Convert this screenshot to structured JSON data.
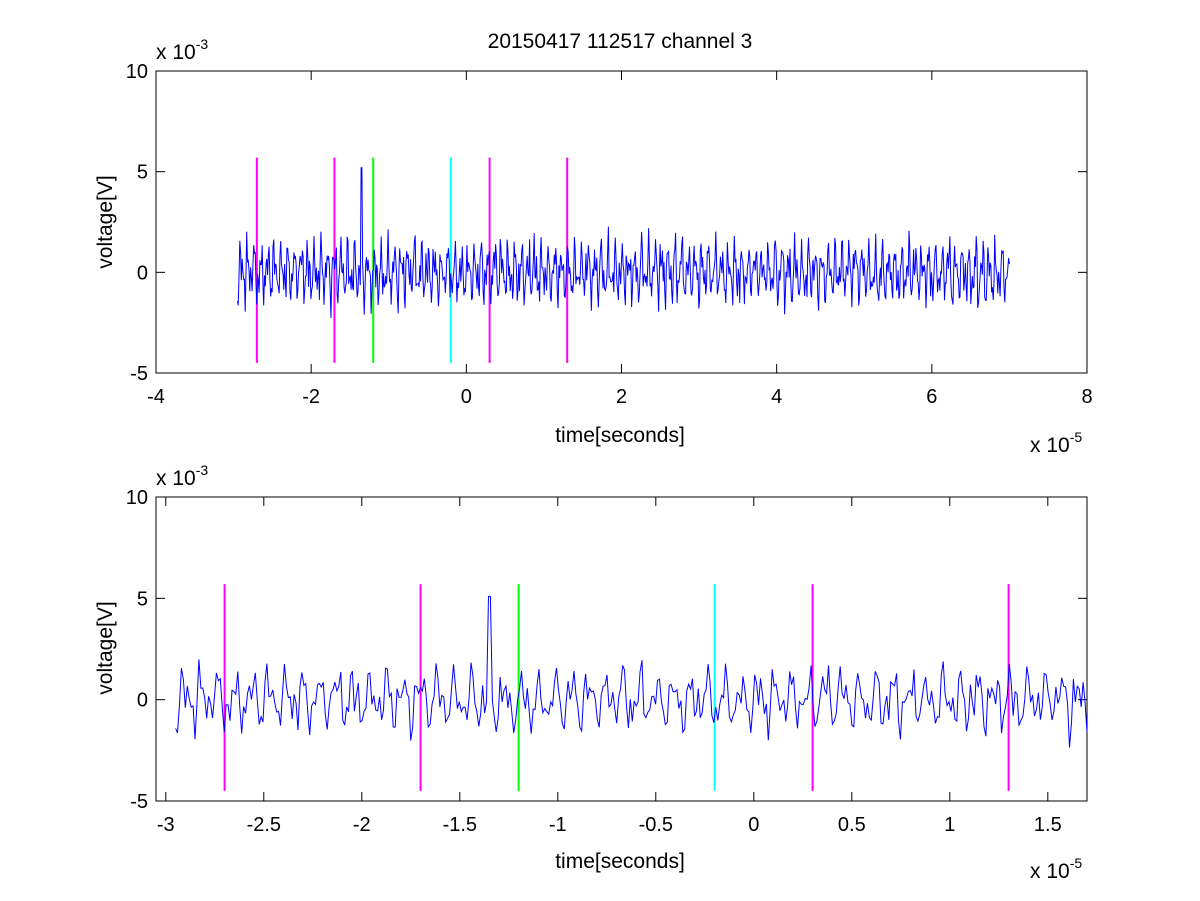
{
  "chart_data": [
    {
      "type": "line",
      "title": "20150417 112517 channel 3",
      "xlabel": "time[seconds]",
      "ylabel": "voltage[V]",
      "x_tick_labels": [
        "-4",
        "-2",
        "0",
        "2",
        "4",
        "6",
        "8"
      ],
      "x_ticks": [
        -4,
        -2,
        0,
        2,
        4,
        6,
        8
      ],
      "y_tick_labels": [
        "-5",
        "0",
        "5",
        "10"
      ],
      "y_ticks": [
        -5,
        0,
        5,
        10
      ],
      "xlim": [
        -4,
        8
      ],
      "ylim": [
        -5,
        10
      ],
      "x_multiplier": {
        "base": "x 10",
        "exponent": "-5"
      },
      "y_multiplier": {
        "base": "x 10",
        "exponent": "-3"
      },
      "grid": false,
      "series": [
        {
          "color": "#0000ff",
          "x_range": [
            -2.95,
            7.0
          ],
          "points": 1000,
          "amplitude_rms": 1.0,
          "y_min": -4.0,
          "y_max": 5.3
        }
      ],
      "markers": [
        {
          "x": -2.7,
          "color": "#ff00ff",
          "y_range": [
            -4.5,
            5.7
          ]
        },
        {
          "x": -1.7,
          "color": "#ff00ff",
          "y_range": [
            -4.5,
            5.7
          ]
        },
        {
          "x": -1.2,
          "color": "#00ff00",
          "y_range": [
            -4.5,
            5.7
          ]
        },
        {
          "x": -0.2,
          "color": "#00ffff",
          "y_range": [
            -4.5,
            5.7
          ]
        },
        {
          "x": 0.3,
          "color": "#ff00ff",
          "y_range": [
            -4.5,
            5.7
          ]
        },
        {
          "x": 1.3,
          "color": "#ff00ff",
          "y_range": [
            -4.5,
            5.7
          ]
        }
      ]
    },
    {
      "type": "line",
      "title": "",
      "xlabel": "time[seconds]",
      "ylabel": "voltage[V]",
      "x_tick_labels": [
        "-3",
        "-2.5",
        "-2",
        "-1.5",
        "-1",
        "-0.5",
        "0",
        "0.5",
        "1",
        "1.5"
      ],
      "x_ticks": [
        -3,
        -2.5,
        -2,
        -1.5,
        -1,
        -0.5,
        0,
        0.5,
        1,
        1.5
      ],
      "y_tick_labels": [
        "-5",
        "0",
        "5",
        "10"
      ],
      "y_ticks": [
        -5,
        0,
        5,
        10
      ],
      "xlim": [
        -3.05,
        1.7
      ],
      "ylim": [
        -5,
        10
      ],
      "x_multiplier": {
        "base": "x 10",
        "exponent": "-5"
      },
      "y_multiplier": {
        "base": "x 10",
        "exponent": "-3"
      },
      "grid": false,
      "series": [
        {
          "color": "#0000ff",
          "x_range": [
            -2.95,
            1.7
          ],
          "points": 470,
          "amplitude_rms": 1.0,
          "y_min": -3.3,
          "y_max": 5.2
        }
      ],
      "markers": [
        {
          "x": -2.7,
          "color": "#ff00ff",
          "y_range": [
            -4.5,
            5.7
          ]
        },
        {
          "x": -1.7,
          "color": "#ff00ff",
          "y_range": [
            -4.5,
            5.7
          ]
        },
        {
          "x": -1.2,
          "color": "#00ff00",
          "y_range": [
            -4.5,
            5.7
          ]
        },
        {
          "x": -0.2,
          "color": "#00ffff",
          "y_range": [
            -4.5,
            5.7
          ]
        },
        {
          "x": 0.3,
          "color": "#ff00ff",
          "y_range": [
            -4.5,
            5.7
          ]
        },
        {
          "x": 1.3,
          "color": "#ff00ff",
          "y_range": [
            -4.5,
            5.7
          ]
        }
      ]
    }
  ]
}
